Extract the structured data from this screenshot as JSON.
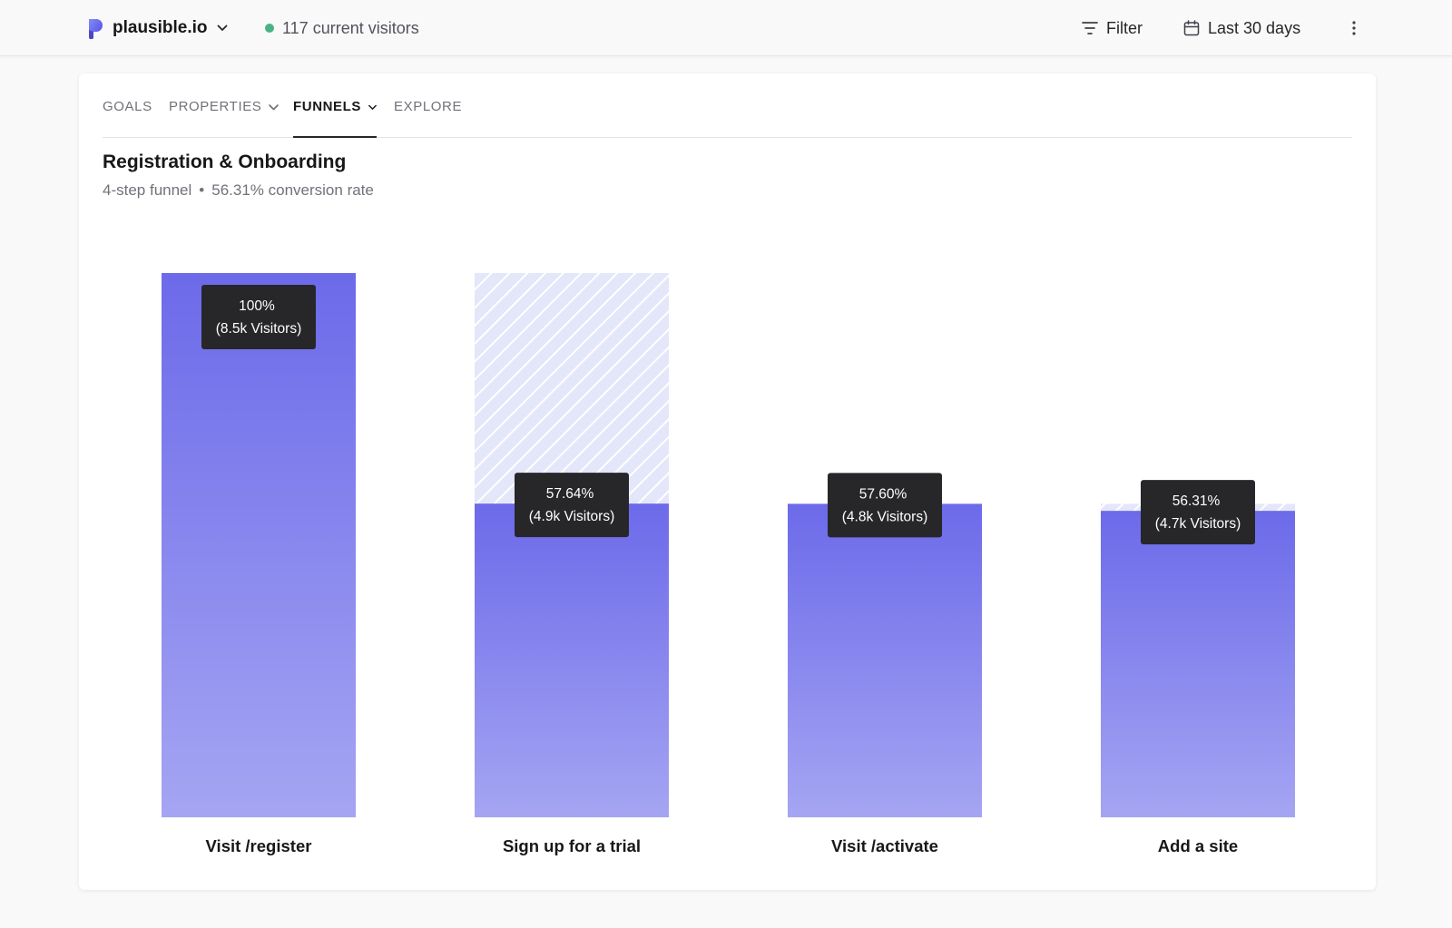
{
  "header": {
    "site_name": "plausible.io",
    "current_visitors": "117 current visitors",
    "filter_label": "Filter",
    "period_label": "Last 30 days",
    "live_dot_color": "#4ab383",
    "brand_color": "#5850ec",
    "icons": [
      "plausible-logo-icon",
      "chevron-down-icon",
      "filter-icon",
      "calendar-icon",
      "more-vertical-icon"
    ]
  },
  "tabs": {
    "goals": "GOALS",
    "properties": "PROPERTIES",
    "funnels": "FUNNELS",
    "explore": "EXPLORE",
    "active": "FUNNELS"
  },
  "funnel": {
    "title": "Registration & Onboarding",
    "steps_text": "4-step funnel",
    "separator": "•",
    "conversion_text": "56.31% conversion rate"
  },
  "chart_data": {
    "type": "bar",
    "categories": [
      "Visit /register",
      "Sign up for a trial",
      "Visit /activate",
      "Add a site"
    ],
    "values": [
      100,
      57.64,
      57.6,
      56.31
    ],
    "value_labels": [
      "100%",
      "57.64%",
      "57.60%",
      "56.31%"
    ],
    "visitor_labels": [
      "(8.5k Visitors)",
      "(4.9k Visitors)",
      "(4.8k Visitors)",
      "(4.7k Visitors)"
    ],
    "ylim": [
      0,
      100
    ],
    "grid": false,
    "bar_color_top": "#6c6ae9",
    "bar_color_bottom": "#a5a5f3",
    "dropoff_color": "#e4e6fa",
    "tooltip_color": "#27272a"
  }
}
